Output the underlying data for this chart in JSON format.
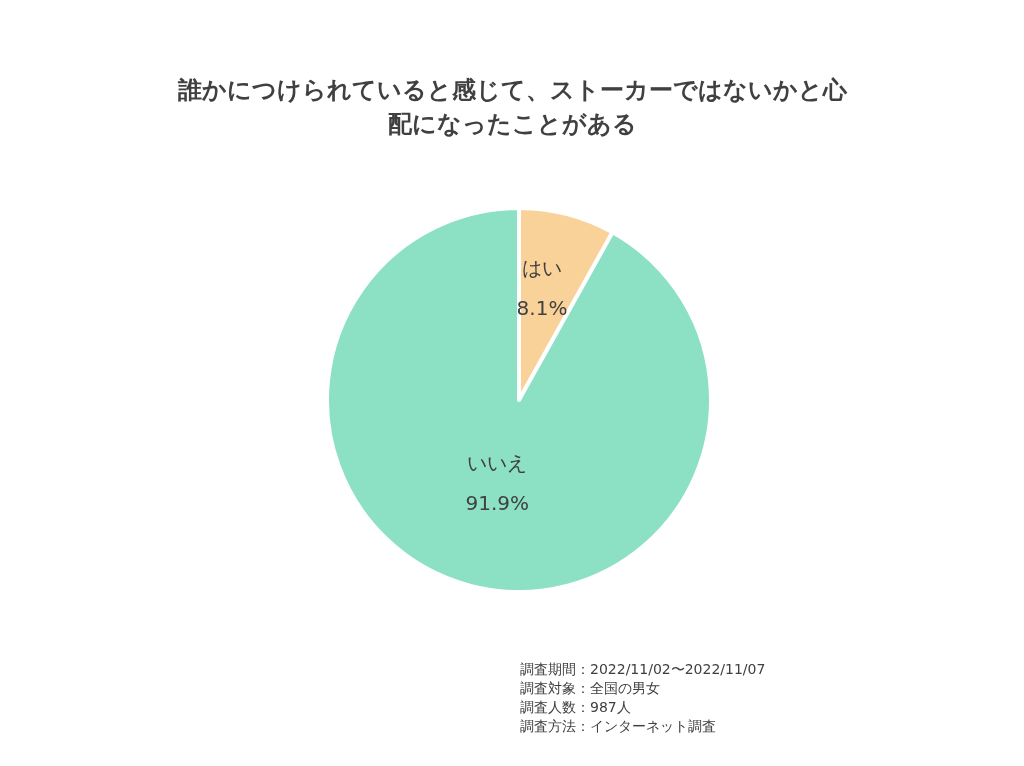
{
  "chart_data": {
    "type": "pie",
    "title": "誰かにつけられていると感じて、ストーカーではないかと心配になったことがある",
    "categories": [
      "はい",
      "いいえ"
    ],
    "values": [
      8.1,
      91.9
    ],
    "colors": [
      "#f9d29a",
      "#8ce0c4"
    ],
    "value_labels": [
      "8.1%",
      "91.9%"
    ],
    "annotations": [
      "調査期間：2022/11/02〜2022/11/07",
      "調査対象：全国の男女",
      "調査人数：987人",
      "調査方法：インターネット調査"
    ]
  }
}
